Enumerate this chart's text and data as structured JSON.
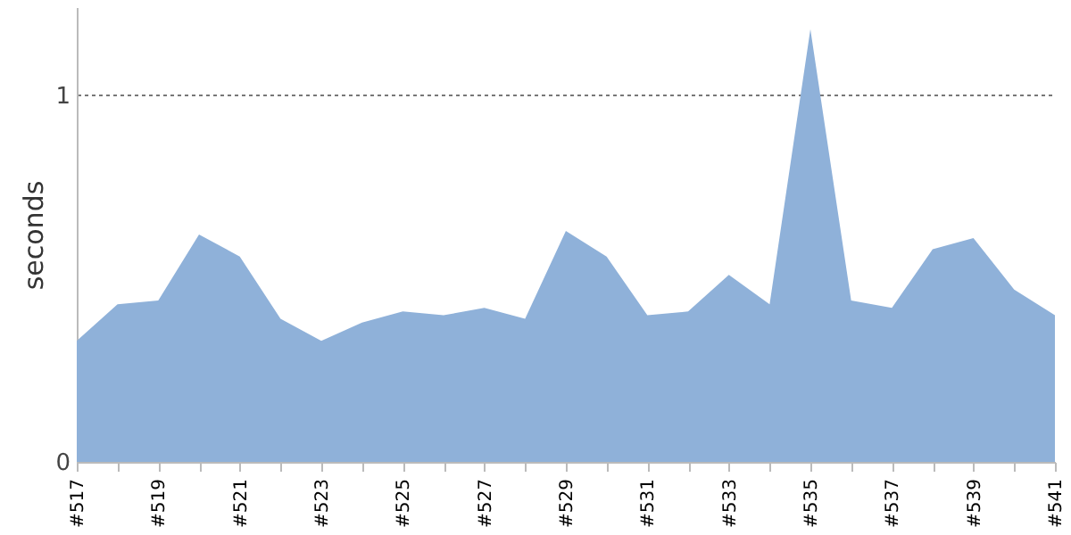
{
  "chart_data": {
    "type": "area",
    "ylabel": "seconds",
    "categories": [
      "#517",
      null,
      "#519",
      null,
      "#521",
      null,
      "#523",
      null,
      "#525",
      null,
      "#527",
      null,
      "#529",
      null,
      "#531",
      null,
      "#533",
      null,
      "#535",
      null,
      "#537",
      null,
      "#539",
      null,
      "#541"
    ],
    "series": [
      {
        "color": "#8fb1d9",
        "values": [
          0.33,
          0.43,
          0.44,
          0.62,
          0.56,
          0.39,
          0.33,
          0.38,
          0.41,
          0.4,
          0.42,
          0.39,
          0.63,
          0.56,
          0.4,
          0.41,
          0.51,
          0.43,
          1.18,
          0.44,
          0.42,
          0.58,
          0.61,
          0.47,
          0.4
        ]
      }
    ],
    "ylim": [
      0,
      1.24
    ],
    "yticks": [
      0,
      1
    ],
    "grid": "y"
  }
}
